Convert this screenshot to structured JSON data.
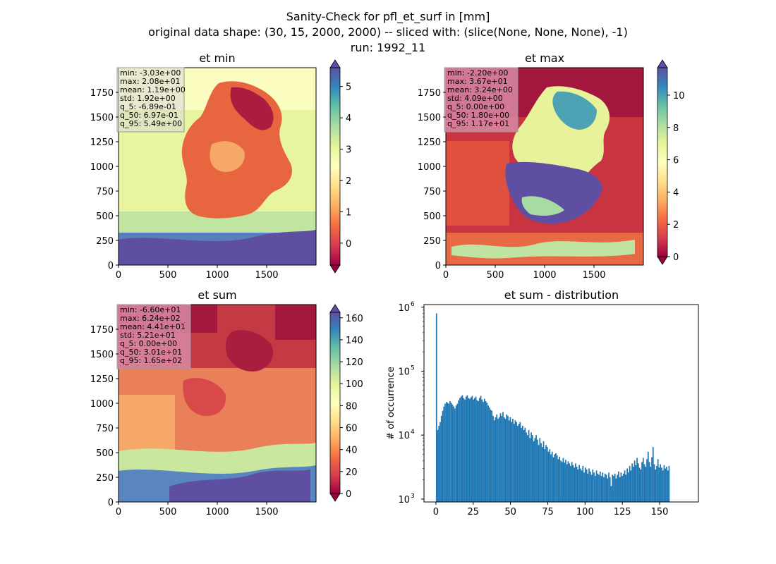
{
  "figure": {
    "title_lines": [
      "Sanity-Check for pfl_et_surf in [mm]",
      "original data shape: (30, 15, 2000, 2000) -- sliced with: (slice(None, None, None), -1)",
      "run: 1992_11"
    ]
  },
  "chart_data": [
    {
      "type": "heatmap",
      "title": "et min",
      "xlim": [
        0,
        2000
      ],
      "ylim": [
        0,
        2000
      ],
      "xticks": [
        0,
        500,
        1000,
        1500
      ],
      "yticks": [
        0,
        250,
        500,
        750,
        1000,
        1250,
        1500,
        1750
      ],
      "colormap": "Spectral",
      "colorbar": {
        "min": -0.7,
        "max": 5.6,
        "ticks": [
          0,
          1,
          2,
          3,
          4,
          5
        ],
        "extend": "both"
      },
      "stats": [
        "min: -3.03e+00",
        "max: 2.08e+01",
        "mean: 1.19e+00",
        "std: 1.92e+00",
        "q_5: -6.89e-01",
        "q_50: 6.97e-01",
        "q_95: 5.49e+00"
      ],
      "stats_box_color": "#d9d9d9"
    },
    {
      "type": "heatmap",
      "title": "et max",
      "xlim": [
        0,
        2000
      ],
      "ylim": [
        0,
        2000
      ],
      "xticks": [
        0,
        500,
        1000,
        1500
      ],
      "yticks": [
        0,
        250,
        500,
        750,
        1000,
        1250,
        1500,
        1750
      ],
      "colormap": "Spectral",
      "colorbar": {
        "min": 0,
        "max": 11.7,
        "ticks": [
          0,
          2,
          4,
          6,
          8,
          10
        ],
        "extend": "both"
      },
      "stats": [
        "min: -2.20e+00",
        "max: 3.67e+01",
        "mean: 3.24e+00",
        "std: 4.09e+00",
        "q_5: 0.00e+00",
        "q_50: 1.80e+00",
        "q_95: 1.17e+01"
      ],
      "stats_box_color": "#d98aa6"
    },
    {
      "type": "heatmap",
      "title": "et sum",
      "xlim": [
        0,
        2000
      ],
      "ylim": [
        0,
        2000
      ],
      "xticks": [
        0,
        500,
        1000,
        1500
      ],
      "yticks": [
        0,
        250,
        500,
        750,
        1000,
        1250,
        1500,
        1750
      ],
      "colormap": "Spectral",
      "colorbar": {
        "min": 0,
        "max": 165,
        "ticks": [
          0,
          20,
          40,
          60,
          80,
          100,
          120,
          140,
          160
        ],
        "extend": "both"
      },
      "stats": [
        "min: -6.60e+01",
        "max: 6.24e+02",
        "mean: 4.41e+01",
        "std: 5.21e+01",
        "q_5: 0.00e+00",
        "q_50: 3.01e+01",
        "q_95: 1.65e+02"
      ],
      "stats_box_color": "#d98aa6"
    },
    {
      "type": "bar",
      "title": "et sum - distribution",
      "ylabel": "# of occurrence",
      "xlim": [
        -8,
        176
      ],
      "ylim": [
        900,
        1100000
      ],
      "yscale": "log",
      "xticks": [
        0,
        25,
        50,
        75,
        100,
        125,
        150
      ],
      "yticks": [
        {
          "value": 1000,
          "base": "10",
          "exp": "3"
        },
        {
          "value": 10000,
          "base": "10",
          "exp": "4"
        },
        {
          "value": 100000,
          "base": "10",
          "exp": "5"
        },
        {
          "value": 1000000,
          "base": "10",
          "exp": "6"
        }
      ],
      "bar_color": "#1f77b4",
      "bin_width": 0.825,
      "x_start": 0,
      "values": [
        800000,
        12000,
        14000,
        16000,
        20000,
        24000,
        28000,
        31000,
        33000,
        32000,
        31000,
        34000,
        32000,
        30000,
        28000,
        26000,
        29000,
        31000,
        35000,
        38000,
        40000,
        42000,
        38000,
        36000,
        40000,
        42000,
        38000,
        37000,
        39000,
        41000,
        36000,
        38000,
        40000,
        35000,
        34000,
        38000,
        41000,
        36000,
        33000,
        37000,
        34000,
        32000,
        29000,
        27000,
        25000,
        24000,
        20000,
        17000,
        19000,
        21000,
        18000,
        19000,
        22000,
        20000,
        23000,
        19000,
        18000,
        21000,
        20000,
        17000,
        19000,
        16000,
        18000,
        15000,
        17000,
        16000,
        14000,
        15000,
        16000,
        13000,
        14000,
        12000,
        13000,
        11000,
        10000,
        12000,
        9000,
        11000,
        10000,
        8000,
        9000,
        10000,
        8500,
        7000,
        9000,
        7500,
        6500,
        8000,
        6000,
        7000,
        6500,
        5500,
        6000,
        5000,
        5500,
        4500,
        5000,
        5200,
        4800,
        4200,
        4600,
        4000,
        3800,
        4400,
        3700,
        4100,
        3500,
        3900,
        3600,
        3300,
        3800,
        3400,
        3100,
        3600,
        3200,
        2900,
        3400,
        3000,
        2800,
        3300,
        2600,
        3100,
        2900,
        2500,
        3000,
        2700,
        2400,
        2900,
        2600,
        2300,
        2800,
        2500,
        2400,
        2700,
        2300,
        2600,
        2200,
        2500,
        2400,
        2100,
        2600,
        2200,
        1600,
        2400,
        2300,
        2500,
        2100,
        2400,
        2700,
        2200,
        2600,
        2300,
        2500,
        2800,
        2400,
        3000,
        2600,
        3300,
        2800,
        3600,
        3200,
        4000,
        3400,
        4400,
        3600,
        3100,
        2900,
        3800,
        4400,
        3500,
        3200,
        4200,
        5500,
        3800,
        3200,
        4500,
        6500,
        3500,
        2900,
        3300,
        4200,
        3100,
        3500,
        3100,
        2800,
        3400,
        3000,
        3200,
        2800,
        3300
      ]
    }
  ]
}
